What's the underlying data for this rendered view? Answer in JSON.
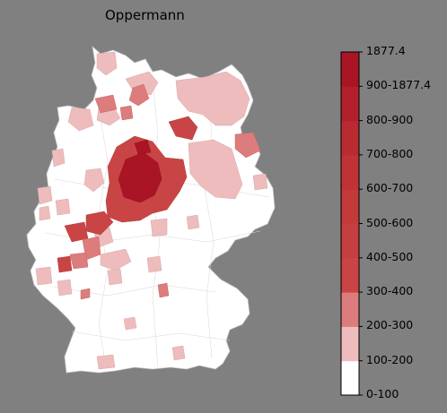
{
  "title": "Oppermann",
  "legend": {
    "bins": [
      {
        "label": "0-100",
        "color": "#ffffff"
      },
      {
        "label": "100-200",
        "color": "#eebcbc"
      },
      {
        "label": "200-300",
        "color": "#dc7c7c"
      },
      {
        "label": "300-400",
        "color": "#c94545"
      },
      {
        "label": "400-500",
        "color": "#c63f40"
      },
      {
        "label": "500-600",
        "color": "#c33a3b"
      },
      {
        "label": "600-700",
        "color": "#bf3336"
      },
      {
        "label": "700-800",
        "color": "#b92a31"
      },
      {
        "label": "800-900",
        "color": "#b2202b"
      },
      {
        "label": "900-1877.4",
        "color": "#a91525"
      },
      {
        "label": "1877.4",
        "color": "#9c0a1e"
      }
    ],
    "tick_labels": [
      "0-100",
      "100-200",
      "200-300",
      "300-400",
      "400-500",
      "500-600",
      "600-700",
      "700-800",
      "800-900",
      "900-1877.4",
      "1877.4"
    ]
  },
  "colors": {
    "background": "#808080",
    "country_fill": "#ffffff",
    "border": "#bdbdbd"
  }
}
